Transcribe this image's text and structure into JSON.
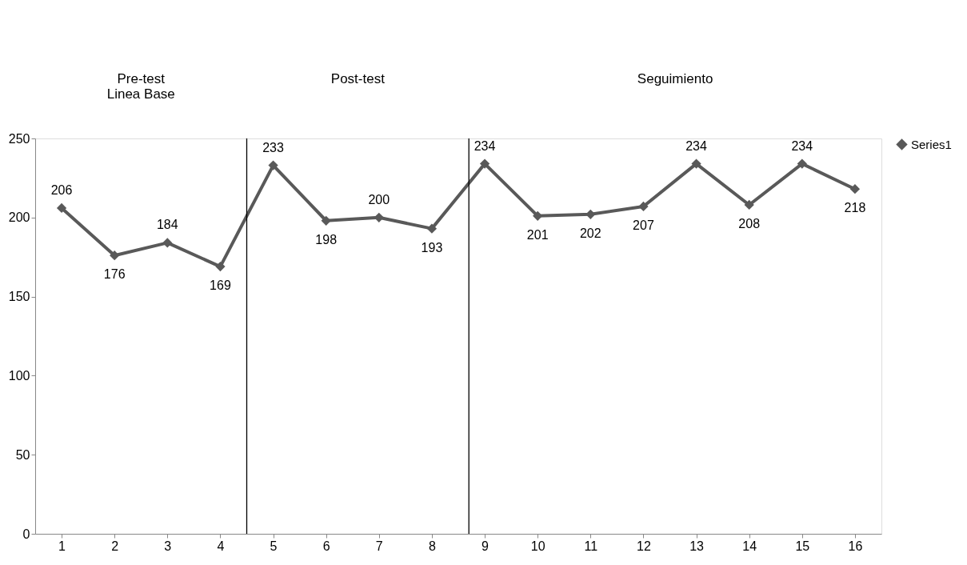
{
  "chart_data": {
    "type": "line",
    "x": [
      1,
      2,
      3,
      4,
      5,
      6,
      7,
      8,
      9,
      10,
      11,
      12,
      13,
      14,
      15,
      16
    ],
    "series": [
      {
        "name": "Series1",
        "color": "#595959",
        "values": [
          206,
          176,
          184,
          169,
          233,
          198,
          200,
          193,
          234,
          201,
          202,
          207,
          234,
          208,
          234,
          218
        ]
      }
    ],
    "xlim": [
      0.5,
      16.5
    ],
    "xticks": [
      1,
      2,
      3,
      4,
      5,
      6,
      7,
      8,
      9,
      10,
      11,
      12,
      13,
      14,
      15,
      16
    ],
    "ylim": [
      0,
      250
    ],
    "yticks": [
      0,
      50,
      100,
      150,
      200,
      250
    ],
    "ref_lines": [
      {
        "axis": "x",
        "value": 4.5,
        "color": "#000000"
      },
      {
        "axis": "x",
        "value": 8.7,
        "color": "#000000"
      }
    ],
    "annotations": [
      "Pre-test\nLinea Base",
      "Post-test",
      "Seguimiento"
    ],
    "data_labels": true,
    "marker": "diamond",
    "line_style": "solid",
    "grid": false,
    "legend": "right"
  }
}
